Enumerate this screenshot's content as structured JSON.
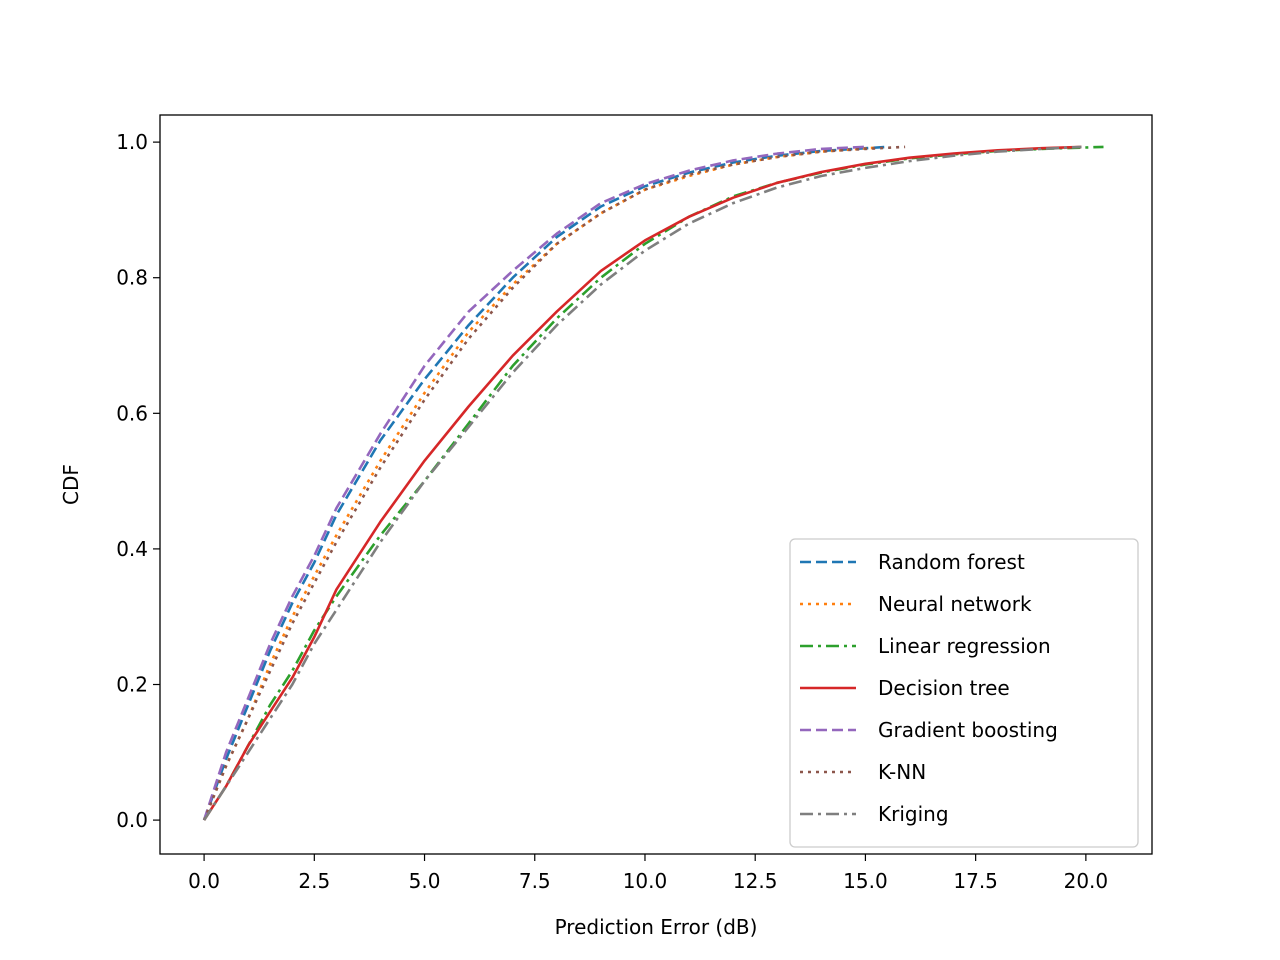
{
  "chart_data": {
    "type": "line",
    "title": "",
    "xlabel": "Prediction Error (dB)",
    "ylabel": "CDF",
    "xlim": [
      -1.0,
      21.5
    ],
    "ylim": [
      -0.05,
      1.04
    ],
    "xticks": [
      0.0,
      2.5,
      5.0,
      7.5,
      10.0,
      12.5,
      15.0,
      17.5,
      20.0
    ],
    "xtick_labels": [
      "0.0",
      "2.5",
      "5.0",
      "7.5",
      "10.0",
      "12.5",
      "15.0",
      "17.5",
      "20.0"
    ],
    "yticks": [
      0.0,
      0.2,
      0.4,
      0.6,
      0.8,
      1.0
    ],
    "ytick_labels": [
      "0.0",
      "0.2",
      "0.4",
      "0.6",
      "0.8",
      "1.0"
    ],
    "grid": false,
    "legend_position": "lower-right",
    "series": [
      {
        "name": "Random forest",
        "color": "#1f77b4",
        "dash": "dashed",
        "x": [
          0,
          0.5,
          1,
          1.5,
          2,
          2.5,
          3,
          4,
          5,
          6,
          7,
          8,
          9,
          10,
          11,
          12,
          13,
          14,
          15.5
        ],
        "y": [
          0,
          0.09,
          0.17,
          0.25,
          0.32,
          0.38,
          0.45,
          0.56,
          0.65,
          0.73,
          0.8,
          0.86,
          0.905,
          0.935,
          0.955,
          0.97,
          0.98,
          0.987,
          0.993
        ]
      },
      {
        "name": "Neural network",
        "color": "#ff7f0e",
        "dash": "dotted",
        "x": [
          0,
          0.5,
          1,
          1.5,
          2,
          2.5,
          3,
          4,
          5,
          6,
          7,
          8,
          9,
          10,
          11,
          12,
          13,
          14,
          15.3
        ],
        "y": [
          0,
          0.08,
          0.15,
          0.23,
          0.3,
          0.36,
          0.42,
          0.53,
          0.63,
          0.72,
          0.79,
          0.85,
          0.895,
          0.93,
          0.95,
          0.967,
          0.978,
          0.986,
          0.992
        ]
      },
      {
        "name": "Linear regression",
        "color": "#2ca02c",
        "dash": "dashdot",
        "x": [
          0,
          0.5,
          1,
          1.5,
          2,
          2.5,
          3,
          4,
          5,
          6,
          7,
          8,
          9,
          10,
          11,
          12,
          13,
          14,
          15,
          16,
          17,
          18,
          19,
          20.4
        ],
        "y": [
          0,
          0.05,
          0.11,
          0.17,
          0.22,
          0.28,
          0.33,
          0.42,
          0.5,
          0.585,
          0.67,
          0.74,
          0.8,
          0.85,
          0.89,
          0.92,
          0.94,
          0.955,
          0.967,
          0.976,
          0.982,
          0.987,
          0.99,
          0.993
        ]
      },
      {
        "name": "Decision tree",
        "color": "#d62728",
        "dash": "solid",
        "x": [
          0,
          0.5,
          1,
          1.5,
          2,
          2.5,
          3,
          4,
          5,
          6,
          7,
          8,
          9,
          10,
          11,
          12,
          13,
          14,
          15,
          16,
          17,
          18,
          19,
          19.9
        ],
        "y": [
          0,
          0.05,
          0.11,
          0.16,
          0.21,
          0.27,
          0.34,
          0.44,
          0.53,
          0.61,
          0.685,
          0.75,
          0.81,
          0.855,
          0.89,
          0.918,
          0.94,
          0.956,
          0.968,
          0.977,
          0.983,
          0.988,
          0.991,
          0.993
        ]
      },
      {
        "name": "Gradient boosting",
        "color": "#9467bd",
        "dash": "dashed",
        "x": [
          0,
          0.5,
          1,
          1.5,
          2,
          2.5,
          3,
          4,
          5,
          6,
          7,
          8,
          9,
          10,
          11,
          12,
          13,
          14,
          15
        ],
        "y": [
          0,
          0.1,
          0.18,
          0.26,
          0.33,
          0.39,
          0.46,
          0.57,
          0.67,
          0.75,
          0.81,
          0.865,
          0.91,
          0.938,
          0.958,
          0.973,
          0.983,
          0.99,
          0.993
        ]
      },
      {
        "name": "K-NN",
        "color": "#8c564b",
        "dash": "dotted",
        "x": [
          0,
          0.5,
          1,
          1.5,
          2,
          2.5,
          3,
          4,
          5,
          6,
          7,
          8,
          9,
          10,
          11,
          12,
          13,
          14,
          15,
          15.9
        ],
        "y": [
          0,
          0.08,
          0.15,
          0.22,
          0.29,
          0.35,
          0.41,
          0.52,
          0.62,
          0.71,
          0.785,
          0.85,
          0.895,
          0.93,
          0.952,
          0.967,
          0.978,
          0.986,
          0.99,
          0.993
        ]
      },
      {
        "name": "Kriging",
        "color": "#7f7f7f",
        "dash": "dashdot",
        "x": [
          0,
          0.5,
          1,
          1.5,
          2,
          2.5,
          3,
          4,
          5,
          6,
          7,
          8,
          9,
          10,
          11,
          12,
          13,
          14,
          15,
          16,
          17,
          18,
          19,
          19.9
        ],
        "y": [
          0,
          0.05,
          0.1,
          0.15,
          0.2,
          0.26,
          0.31,
          0.41,
          0.5,
          0.58,
          0.66,
          0.73,
          0.79,
          0.84,
          0.88,
          0.91,
          0.933,
          0.95,
          0.962,
          0.972,
          0.98,
          0.986,
          0.99,
          0.993
        ]
      }
    ]
  }
}
